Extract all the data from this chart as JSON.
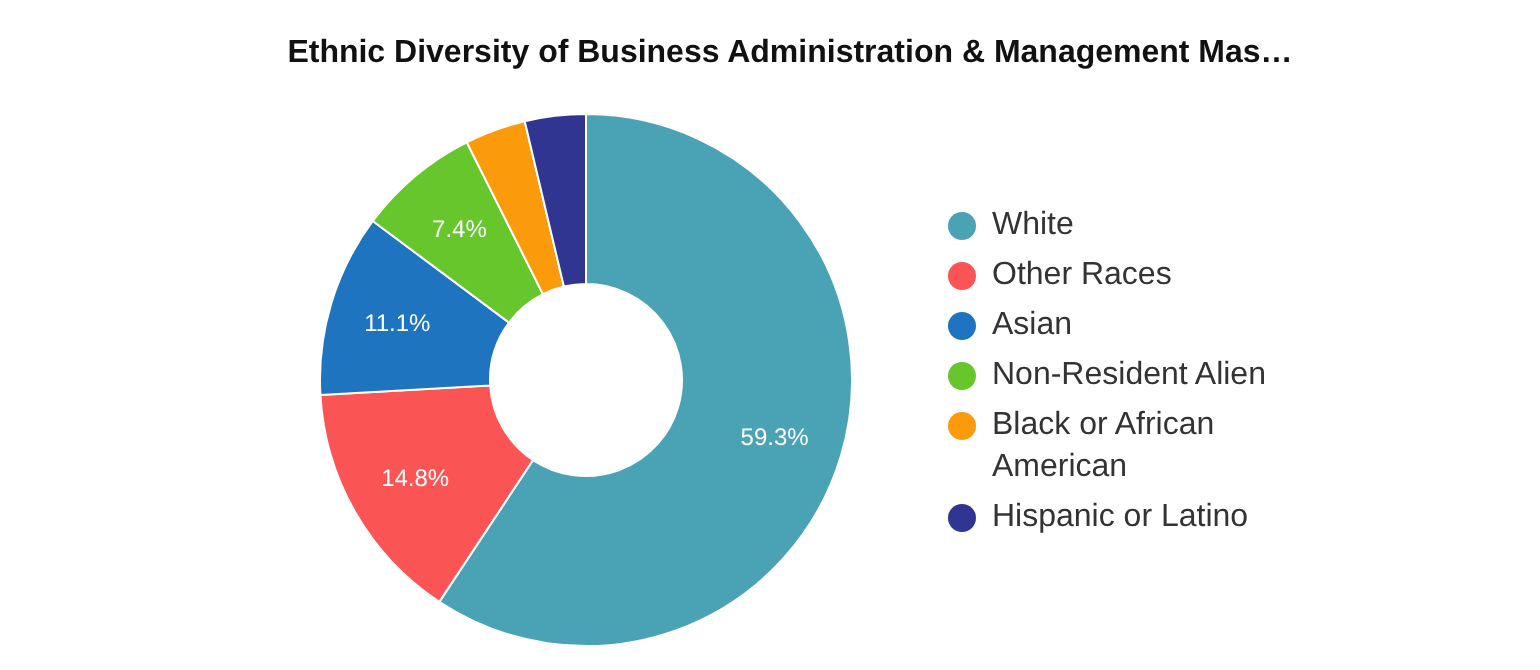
{
  "chart_data": {
    "type": "donut",
    "title": "Ethnic Diversity of Business Administration & Management Mas…",
    "categories": [
      "White",
      "Other Races",
      "Asian",
      "Non-Resident Alien",
      "Black or African American",
      "Hispanic or Latino"
    ],
    "values": [
      59.3,
      14.8,
      11.1,
      7.4,
      3.7,
      3.7
    ],
    "value_labels": [
      "59.3%",
      "14.8%",
      "11.1%",
      "7.4%",
      null,
      null
    ],
    "colors": [
      "#4aa3b5",
      "#fb5454",
      "#1f74c0",
      "#66c62c",
      "#fb9a0a",
      "#303592"
    ],
    "legend": "right"
  }
}
